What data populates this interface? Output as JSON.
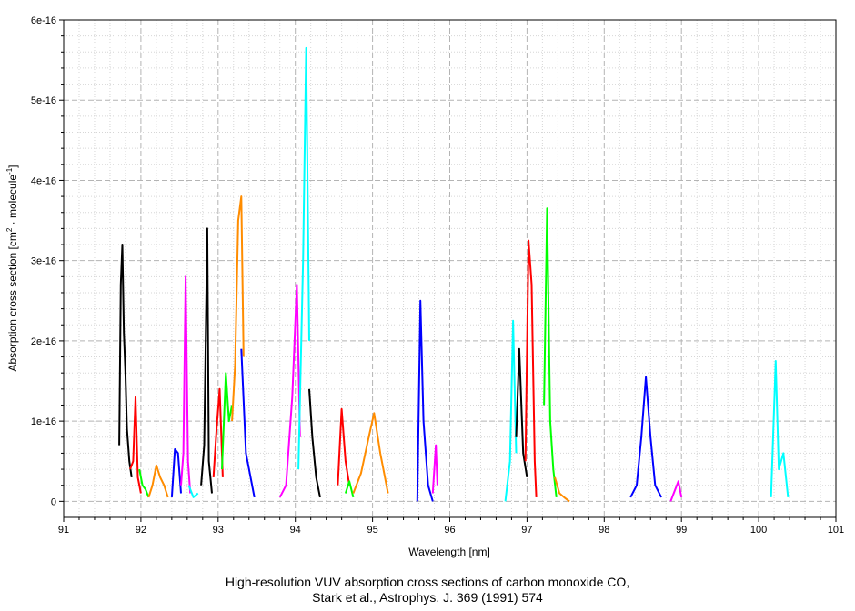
{
  "chart_data": {
    "type": "line",
    "title": "",
    "xlabel": "Wavelength [nm]",
    "ylabel_main": "Absorption cross section [cm",
    "ylabel_sup1": "2",
    "ylabel_mid": " · molecule",
    "ylabel_sup2": "-1",
    "ylabel_end": "]",
    "xlim": [
      91,
      101
    ],
    "ylim": [
      -2e-17,
      6e-16
    ],
    "xticks": [
      "91",
      "92",
      "93",
      "94",
      "95",
      "96",
      "97",
      "98",
      "99",
      "100",
      "101"
    ],
    "yticks": [
      "0",
      "1e-16",
      "2e-16",
      "3e-16",
      "4e-16",
      "5e-16",
      "6e-16"
    ],
    "grid": true,
    "legend": "none",
    "series": [
      {
        "color": "#000000",
        "x": [
          91.72,
          91.74,
          91.76,
          91.78,
          91.8,
          91.82,
          91.85,
          91.88
        ],
        "y": [
          7e-17,
          2.7e-16,
          3.2e-16,
          2.1e-16,
          1.6e-16,
          9e-17,
          5e-17,
          3e-17
        ]
      },
      {
        "color": "#ff0000",
        "x": [
          91.86,
          91.9,
          91.93,
          91.96,
          92.0
        ],
        "y": [
          4e-17,
          5e-17,
          1.3e-16,
          3e-17,
          1e-17
        ]
      },
      {
        "color": "#00ff00",
        "x": [
          91.98,
          92.02,
          92.06,
          92.1
        ],
        "y": [
          4e-17,
          2e-17,
          1.5e-17,
          5e-18
        ]
      },
      {
        "color": "#ff8c00",
        "x": [
          92.1,
          92.15,
          92.2,
          92.25,
          92.3,
          92.35
        ],
        "y": [
          5e-18,
          2e-17,
          4.5e-17,
          3e-17,
          2e-17,
          5e-18
        ]
      },
      {
        "color": "#0000ff",
        "x": [
          92.4,
          92.44,
          92.48,
          92.52
        ],
        "y": [
          5e-18,
          6.5e-17,
          6e-17,
          1e-17
        ]
      },
      {
        "color": "#ff00ff",
        "x": [
          92.52,
          92.55,
          92.58,
          92.61,
          92.64
        ],
        "y": [
          2e-17,
          6e-17,
          2.8e-16,
          5e-17,
          1e-17
        ]
      },
      {
        "color": "#00ffff",
        "x": [
          92.62,
          92.68,
          92.74
        ],
        "y": [
          2e-17,
          5e-18,
          1e-17
        ]
      },
      {
        "color": "#000000",
        "x": [
          92.78,
          92.82,
          92.86,
          92.88,
          92.92
        ],
        "y": [
          2e-17,
          7e-17,
          3.4e-16,
          5e-17,
          1e-17
        ]
      },
      {
        "color": "#ff0000",
        "x": [
          92.94,
          92.98,
          93.02,
          93.06
        ],
        "y": [
          3e-17,
          9e-17,
          1.4e-16,
          3e-17
        ]
      },
      {
        "color": "#00ff00",
        "x": [
          93.05,
          93.1,
          93.14,
          93.18
        ],
        "y": [
          4e-17,
          1.6e-16,
          1e-16,
          1.2e-16
        ]
      },
      {
        "color": "#ff8c00",
        "x": [
          93.18,
          93.22,
          93.26,
          93.3,
          93.33
        ],
        "y": [
          1e-16,
          1.7e-16,
          3.5e-16,
          3.8e-16,
          1.8e-16
        ]
      },
      {
        "color": "#0000ff",
        "x": [
          93.3,
          93.36,
          93.42,
          93.47
        ],
        "y": [
          1.9e-16,
          6e-17,
          3e-17,
          5e-18
        ]
      },
      {
        "color": "#ff00ff",
        "x": [
          93.8,
          93.88,
          93.96,
          94.02,
          94.06
        ],
        "y": [
          5e-18,
          2e-17,
          1.3e-16,
          2.7e-16,
          8e-17
        ]
      },
      {
        "color": "#00ffff",
        "x": [
          94.04,
          94.1,
          94.14,
          94.18
        ],
        "y": [
          4e-17,
          3e-16,
          5.65e-16,
          2e-16
        ]
      },
      {
        "color": "#000000",
        "x": [
          94.18,
          94.22,
          94.27,
          94.32
        ],
        "y": [
          1.4e-16,
          8e-17,
          3e-17,
          5e-18
        ]
      },
      {
        "color": "#ff0000",
        "x": [
          94.55,
          94.6,
          94.65,
          94.7
        ],
        "y": [
          2e-17,
          1.15e-16,
          5e-17,
          2e-17
        ]
      },
      {
        "color": "#00ff00",
        "x": [
          94.65,
          94.7,
          94.75
        ],
        "y": [
          1e-17,
          2.5e-17,
          5e-18
        ]
      },
      {
        "color": "#ff8c00",
        "x": [
          94.75,
          94.85,
          94.95,
          95.02,
          95.1,
          95.2
        ],
        "y": [
          1e-17,
          3.5e-17,
          8e-17,
          1.1e-16,
          6e-17,
          1e-17
        ]
      },
      {
        "color": "#0000ff",
        "x": [
          95.58,
          95.62,
          95.66,
          95.72,
          95.78
        ],
        "y": [
          0.0,
          2.5e-16,
          1e-16,
          2e-17,
          0.0
        ]
      },
      {
        "color": "#ff00ff",
        "x": [
          95.78,
          95.82,
          95.84
        ],
        "y": [
          1e-17,
          7e-17,
          2e-17
        ]
      },
      {
        "color": "#00ffff",
        "x": [
          96.72,
          96.78,
          96.82,
          96.86
        ],
        "y": [
          0.0,
          5e-17,
          2.25e-16,
          6e-17
        ]
      },
      {
        "color": "#000000",
        "x": [
          96.86,
          96.9,
          96.95,
          97.0
        ],
        "y": [
          8e-17,
          1.9e-16,
          6e-17,
          3e-17
        ]
      },
      {
        "color": "#ff0000",
        "x": [
          96.98,
          97.02,
          97.06,
          97.1,
          97.12
        ],
        "y": [
          5e-17,
          3.25e-16,
          2.7e-16,
          5e-17,
          5e-18
        ]
      },
      {
        "color": "#00ff00",
        "x": [
          97.22,
          97.26,
          97.3,
          97.34,
          97.38
        ],
        "y": [
          1.2e-16,
          3.65e-16,
          1e-16,
          4e-17,
          5e-18
        ]
      },
      {
        "color": "#ff8c00",
        "x": [
          97.36,
          97.42,
          97.48,
          97.55
        ],
        "y": [
          3e-17,
          1e-17,
          5e-18,
          0.0
        ]
      },
      {
        "color": "#0000ff",
        "x": [
          98.34,
          98.42,
          98.48,
          98.54,
          98.6,
          98.66,
          98.74
        ],
        "y": [
          5e-18,
          2e-17,
          8e-17,
          1.55e-16,
          8e-17,
          2e-17,
          5e-18
        ]
      },
      {
        "color": "#ff00ff",
        "x": [
          98.86,
          98.92,
          98.96,
          99.0
        ],
        "y": [
          0.0,
          1.5e-17,
          2.5e-17,
          5e-18
        ]
      },
      {
        "color": "#00ffff",
        "x": [
          100.16,
          100.22,
          100.26,
          100.32,
          100.38
        ],
        "y": [
          5e-18,
          1.75e-16,
          4e-17,
          6e-17,
          5e-18
        ]
      }
    ]
  },
  "caption": {
    "line1": "High-resolution VUV absorption cross sections of carbon monoxide CO,",
    "line2": "Stark et al., Astrophys. J. 369 (1991) 574"
  }
}
